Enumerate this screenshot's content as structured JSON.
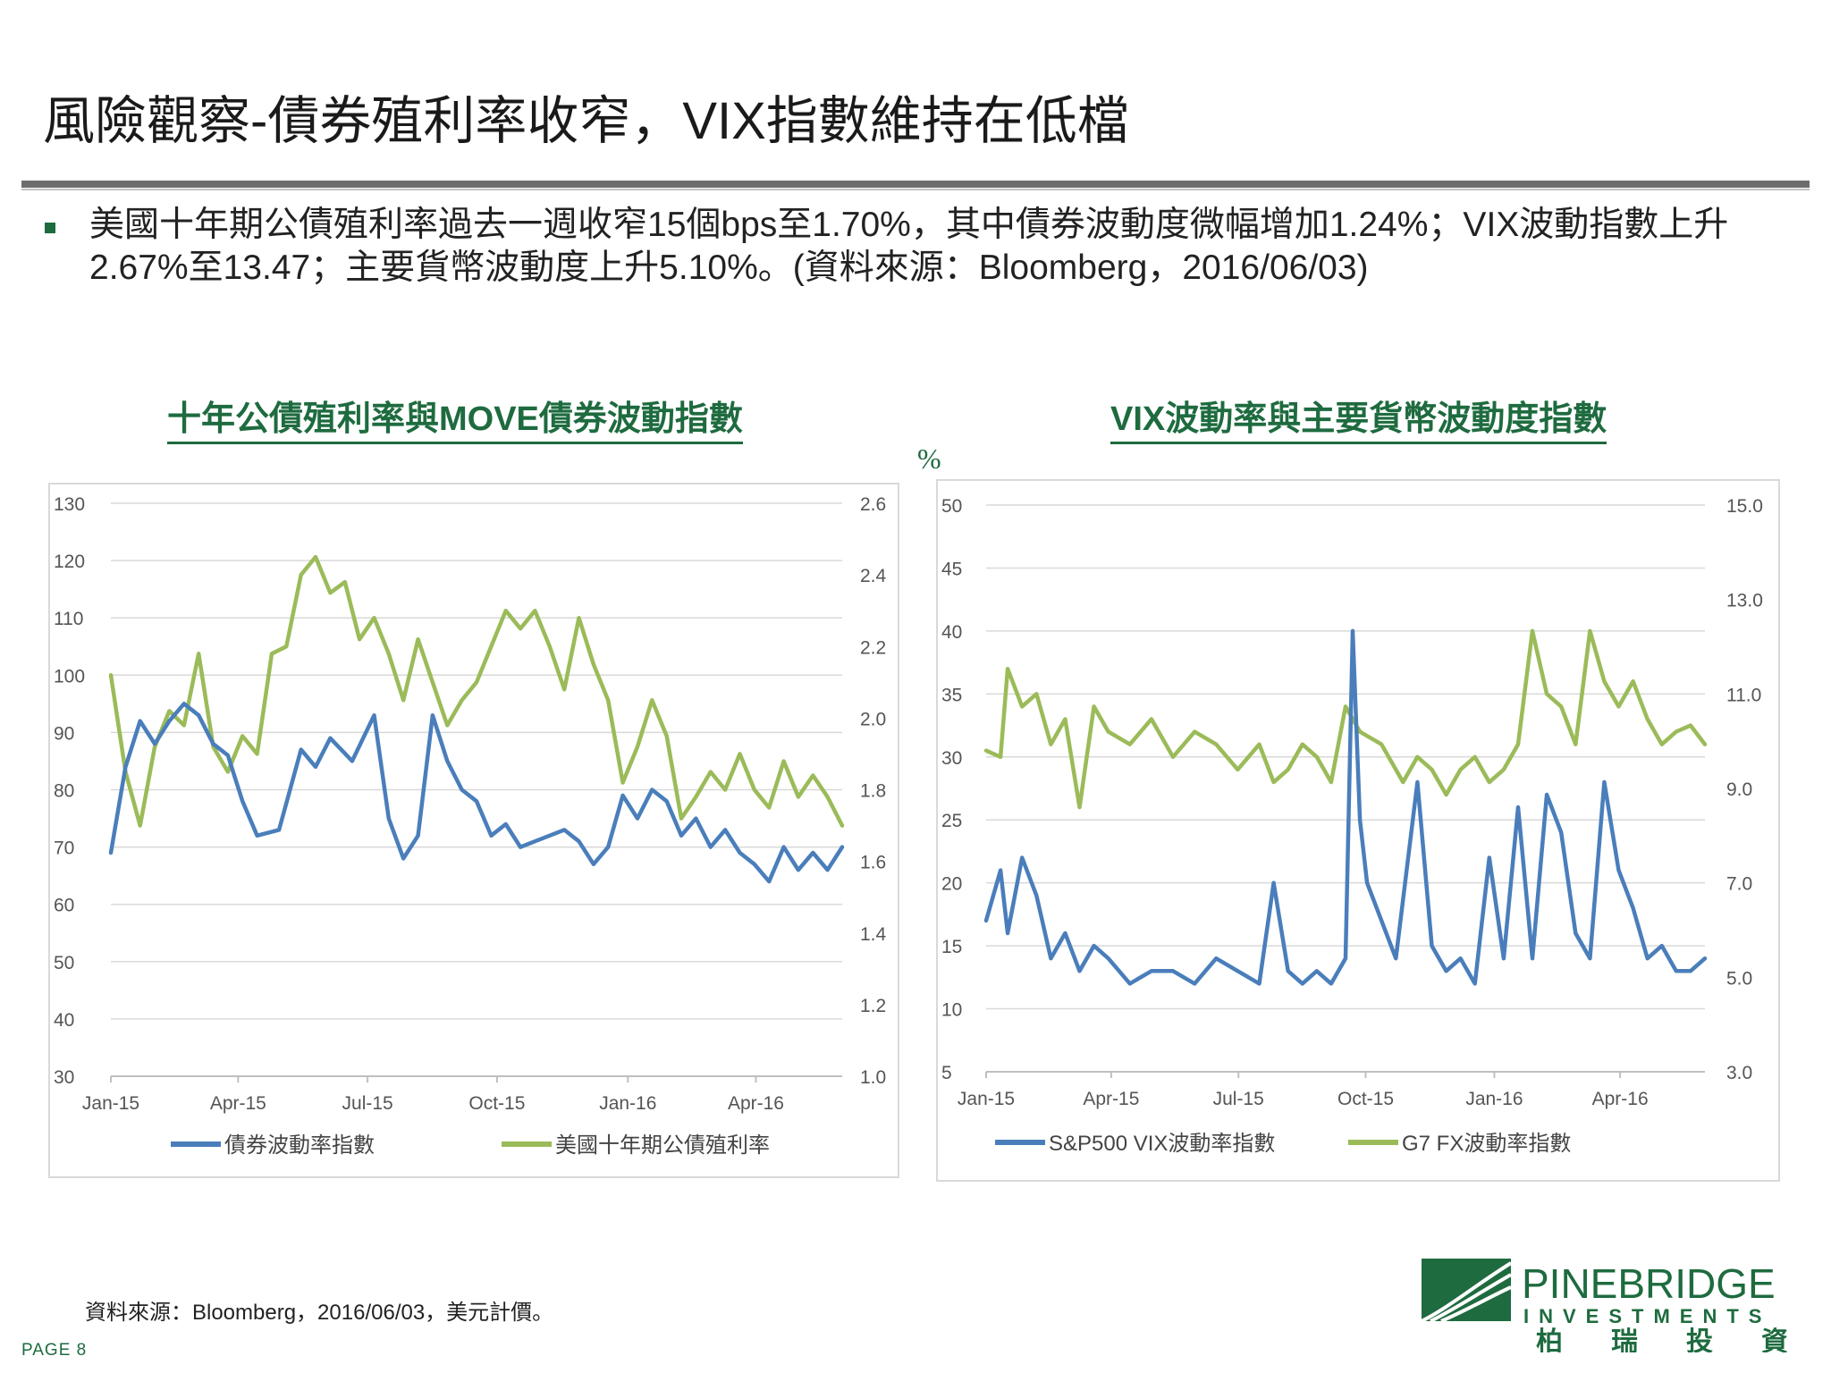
{
  "page": {
    "title": "風險觀察-債券殖利率收窄，VIX指數維持在低檔",
    "bullet": "美國十年期公債殖利率過去一週收窄15個bps至1.70%，其中債券波動度微幅增加1.24%；VIX波動指數上升2.67%至13.47；主要貨幣波動度上升5.10%。(資料來源：Bloomberg，2016/06/03)",
    "percent_label": "%",
    "footnote": "資料來源：Bloomberg，2016/06/03，美元計價。",
    "page_number": "PAGE 8"
  },
  "logo": {
    "name": "PINEBRIDGE",
    "sub": "INVESTMENTS",
    "chinese": [
      "柏",
      "瑞",
      "投",
      "資"
    ]
  },
  "colors": {
    "green_brand": "#1e6b3f",
    "series_blue": "#4a7ebb",
    "series_green": "#9bbb59",
    "grid": "#d9d9d9",
    "rule": "#6d6d6d"
  },
  "chart_data": [
    {
      "type": "line",
      "title": "十年公債殖利率與MOVE債券波動指數",
      "x_ticks": [
        "Jan-15",
        "Apr-15",
        "Jul-15",
        "Oct-15",
        "Jan-16",
        "Apr-16"
      ],
      "y_left": {
        "min": 30,
        "max": 130,
        "step": 10,
        "ticks": [
          "130",
          "120",
          "110",
          "100",
          "90",
          "80",
          "70",
          "60",
          "50",
          "40",
          "30"
        ]
      },
      "y_right": {
        "min": 1.0,
        "max": 2.6,
        "ticks": [
          "2.6",
          "2.4",
          "2.2",
          "2.0",
          "1.8",
          "1.6",
          "1.4",
          "1.2",
          "1.0"
        ]
      },
      "grid": true,
      "legend_position": "bottom",
      "series": [
        {
          "name": "債券波動率指數",
          "axis": "left",
          "color": "#4a7ebb",
          "t": [
            0,
            0.02,
            0.04,
            0.06,
            0.08,
            0.1,
            0.12,
            0.14,
            0.16,
            0.18,
            0.2,
            0.23,
            0.26,
            0.28,
            0.3,
            0.33,
            0.36,
            0.38,
            0.4,
            0.42,
            0.44,
            0.46,
            0.48,
            0.5,
            0.52,
            0.54,
            0.56,
            0.58,
            0.6,
            0.62,
            0.64,
            0.66,
            0.68,
            0.7,
            0.72,
            0.74,
            0.76,
            0.78,
            0.8,
            0.82,
            0.84,
            0.86,
            0.88,
            0.9,
            0.92,
            0.94,
            0.96,
            0.98,
            1.0
          ],
          "values": [
            69,
            84,
            92,
            88,
            92,
            95,
            93,
            88,
            86,
            78,
            72,
            73,
            87,
            84,
            89,
            85,
            93,
            75,
            68,
            72,
            93,
            85,
            80,
            78,
            72,
            74,
            70,
            71,
            72,
            73,
            71,
            67,
            70,
            79,
            75,
            80,
            78,
            72,
            75,
            70,
            73,
            69,
            67,
            64,
            70,
            66,
            69,
            66,
            70
          ]
        },
        {
          "name": "美國十年期公債殖利率",
          "axis": "right",
          "color": "#9bbb59",
          "t": [
            0,
            0.02,
            0.04,
            0.06,
            0.08,
            0.1,
            0.12,
            0.14,
            0.16,
            0.18,
            0.2,
            0.22,
            0.24,
            0.26,
            0.28,
            0.3,
            0.32,
            0.34,
            0.36,
            0.38,
            0.4,
            0.42,
            0.44,
            0.46,
            0.48,
            0.5,
            0.52,
            0.54,
            0.56,
            0.58,
            0.6,
            0.62,
            0.64,
            0.66,
            0.68,
            0.7,
            0.72,
            0.74,
            0.76,
            0.78,
            0.8,
            0.82,
            0.84,
            0.86,
            0.88,
            0.9,
            0.92,
            0.94,
            0.96,
            0.98,
            1.0
          ],
          "values": [
            2.12,
            1.85,
            1.7,
            1.92,
            2.02,
            1.98,
            2.18,
            1.92,
            1.85,
            1.95,
            1.9,
            2.18,
            2.2,
            2.4,
            2.45,
            2.35,
            2.38,
            2.22,
            2.28,
            2.18,
            2.05,
            2.22,
            2.1,
            1.98,
            2.05,
            2.1,
            2.2,
            2.3,
            2.25,
            2.3,
            2.2,
            2.08,
            2.28,
            2.15,
            2.05,
            1.82,
            1.92,
            2.05,
            1.95,
            1.72,
            1.78,
            1.85,
            1.8,
            1.9,
            1.8,
            1.75,
            1.88,
            1.78,
            1.84,
            1.78,
            1.7
          ]
        }
      ]
    },
    {
      "type": "line",
      "title": "VIX波動率與主要貨幣波動度指數",
      "x_ticks": [
        "Jan-15",
        "Apr-15",
        "Jul-15",
        "Oct-15",
        "Jan-16",
        "Apr-16"
      ],
      "y_left": {
        "min": 5,
        "max": 50,
        "step": 5,
        "ticks": [
          "50",
          "45",
          "40",
          "35",
          "30",
          "25",
          "20",
          "15",
          "10",
          "5"
        ]
      },
      "y_right": {
        "min": 3.0,
        "max": 15.0,
        "ticks": [
          "15.0",
          "13.0",
          "11.0",
          "9.0",
          "7.0",
          "5.0",
          "3.0"
        ]
      },
      "grid": true,
      "legend_position": "bottom",
      "series": [
        {
          "name": "S&P500 VIX波動率指數",
          "axis": "left",
          "color": "#4a7ebb",
          "t": [
            0,
            0.02,
            0.03,
            0.05,
            0.07,
            0.09,
            0.11,
            0.13,
            0.15,
            0.17,
            0.2,
            0.23,
            0.26,
            0.29,
            0.32,
            0.35,
            0.38,
            0.4,
            0.42,
            0.44,
            0.46,
            0.48,
            0.5,
            0.51,
            0.52,
            0.53,
            0.55,
            0.57,
            0.6,
            0.62,
            0.64,
            0.66,
            0.68,
            0.7,
            0.72,
            0.74,
            0.76,
            0.78,
            0.8,
            0.82,
            0.84,
            0.86,
            0.88,
            0.9,
            0.92,
            0.94,
            0.96,
            0.98,
            1.0
          ],
          "values": [
            17,
            21,
            16,
            22,
            19,
            14,
            16,
            13,
            15,
            14,
            12,
            13,
            13,
            12,
            14,
            13,
            12,
            20,
            13,
            12,
            13,
            12,
            14,
            40,
            25,
            20,
            17,
            14,
            28,
            15,
            13,
            14,
            12,
            22,
            14,
            26,
            14,
            27,
            24,
            16,
            14,
            28,
            21,
            18,
            14,
            15,
            13,
            13,
            14
          ]
        },
        {
          "name": "G7 FX波動率指數",
          "axis": "left",
          "color": "#9bbb59",
          "t": [
            0,
            0.02,
            0.03,
            0.05,
            0.07,
            0.09,
            0.11,
            0.13,
            0.15,
            0.17,
            0.2,
            0.23,
            0.26,
            0.29,
            0.32,
            0.35,
            0.38,
            0.4,
            0.42,
            0.44,
            0.46,
            0.48,
            0.5,
            0.52,
            0.55,
            0.58,
            0.6,
            0.62,
            0.64,
            0.66,
            0.68,
            0.7,
            0.72,
            0.74,
            0.76,
            0.78,
            0.8,
            0.82,
            0.84,
            0.86,
            0.88,
            0.9,
            0.92,
            0.94,
            0.96,
            0.98,
            1.0
          ],
          "values": [
            30.5,
            30,
            37,
            34,
            35,
            31,
            33,
            26,
            34,
            32,
            31,
            33,
            30,
            32,
            31,
            29,
            31,
            28,
            29,
            31,
            30,
            28,
            34,
            32,
            31,
            28,
            30,
            29,
            27,
            29,
            30,
            28,
            29,
            31,
            40,
            35,
            34,
            31,
            40,
            36,
            34,
            36,
            33,
            31,
            32,
            32.5,
            31
          ]
        }
      ]
    }
  ]
}
